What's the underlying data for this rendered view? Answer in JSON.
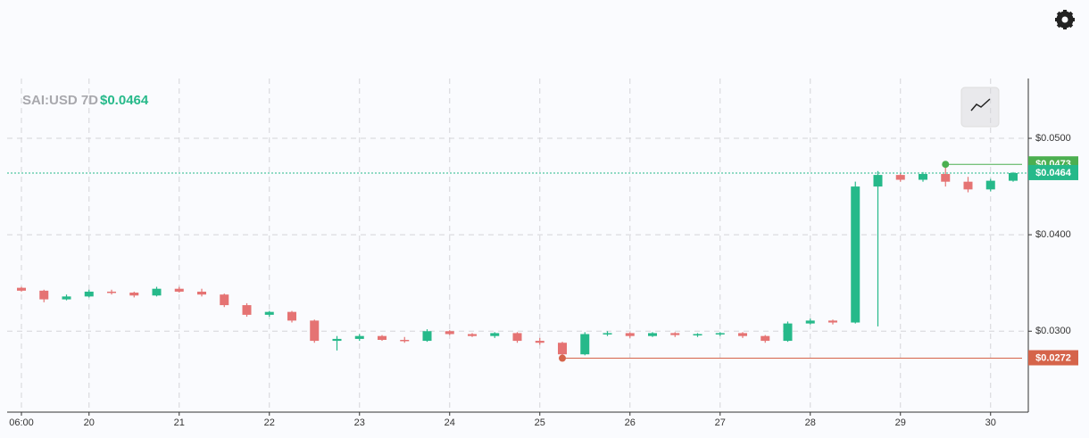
{
  "chart_data": {
    "type": "candlestick",
    "title": "SAI:USD 7D",
    "last_price": {
      "value": 0.0464,
      "label": "$0.0464"
    },
    "high_marker": {
      "value": 0.0473,
      "label": "$0.0473",
      "color": "#4caf50"
    },
    "low_marker": {
      "value": 0.0272,
      "label": "$0.0272",
      "color": "#d5644a"
    },
    "up_color": "#26b98a",
    "down_color": "#e57373",
    "grid": true,
    "categories": [
      "06:00",
      null,
      null,
      "20",
      null,
      null,
      null,
      "21",
      null,
      null,
      null,
      "22",
      null,
      null,
      null,
      "23",
      null,
      null,
      null,
      "24",
      null,
      null,
      null,
      "25",
      null,
      null,
      null,
      "26",
      null,
      null,
      null,
      "27",
      null,
      null,
      null,
      "28",
      null,
      null,
      null,
      "29",
      null,
      null,
      null,
      "30",
      null
    ],
    "open": [
      0.0345,
      0.0342,
      0.0333,
      0.0336,
      0.0341,
      0.034,
      0.0337,
      0.0344,
      0.0341,
      0.0338,
      0.0327,
      0.0317,
      0.032,
      0.0311,
      0.029,
      0.0292,
      0.0295,
      0.0291,
      0.029,
      0.03,
      0.0297,
      0.0295,
      0.0298,
      0.029,
      0.0288,
      0.0276,
      0.0297,
      0.0298,
      0.0295,
      0.0298,
      0.0296,
      0.0297,
      0.0298,
      0.0295,
      0.029,
      0.0308,
      0.0311,
      0.0309,
      0.045,
      0.0462,
      0.0457,
      0.0463,
      0.0455,
      0.0447,
      0.0456
    ],
    "high": [
      0.0346,
      0.0343,
      0.0338,
      0.0343,
      0.0343,
      0.0341,
      0.0346,
      0.0346,
      0.0344,
      0.0339,
      0.0329,
      0.0321,
      0.0321,
      0.0312,
      0.0295,
      0.0297,
      0.0296,
      0.0294,
      0.0302,
      0.0301,
      0.0298,
      0.0299,
      0.0299,
      0.0293,
      0.0289,
      0.0299,
      0.03,
      0.0299,
      0.0299,
      0.0299,
      0.0298,
      0.0299,
      0.0299,
      0.0296,
      0.031,
      0.0313,
      0.0312,
      0.0455,
      0.0466,
      0.0464,
      0.0465,
      0.0473,
      0.046,
      0.0458,
      0.0465
    ],
    "low": [
      0.0341,
      0.033,
      0.0332,
      0.0335,
      0.0338,
      0.0335,
      0.0336,
      0.034,
      0.0336,
      0.0325,
      0.0315,
      0.0315,
      0.0309,
      0.0288,
      0.028,
      0.029,
      0.029,
      0.0288,
      0.0289,
      0.0296,
      0.0294,
      0.0293,
      0.0288,
      0.0286,
      0.0272,
      0.0275,
      0.0295,
      0.0293,
      0.0294,
      0.0294,
      0.0294,
      0.0295,
      0.0293,
      0.0288,
      0.0289,
      0.0307,
      0.0307,
      0.0308,
      0.0305,
      0.0455,
      0.0455,
      0.045,
      0.0444,
      0.0445,
      0.0455
    ],
    "close": [
      0.0342,
      0.0333,
      0.0336,
      0.0341,
      0.034,
      0.0337,
      0.0344,
      0.0341,
      0.0338,
      0.0327,
      0.0317,
      0.032,
      0.0311,
      0.029,
      0.0292,
      0.0295,
      0.0291,
      0.029,
      0.03,
      0.0297,
      0.0295,
      0.0298,
      0.029,
      0.0288,
      0.0276,
      0.0297,
      0.0298,
      0.0295,
      0.0298,
      0.0296,
      0.0297,
      0.0298,
      0.0295,
      0.029,
      0.0308,
      0.0311,
      0.0309,
      0.045,
      0.0462,
      0.0457,
      0.0463,
      0.0455,
      0.0447,
      0.0456,
      0.0464
    ],
    "ylim": [
      0.0217,
      0.0562
    ],
    "yticks": [
      {
        "value": 0.03,
        "label": "$0.0300"
      },
      {
        "value": 0.04,
        "label": "$0.0400"
      },
      {
        "value": 0.05,
        "label": "$0.0500"
      }
    ]
  }
}
